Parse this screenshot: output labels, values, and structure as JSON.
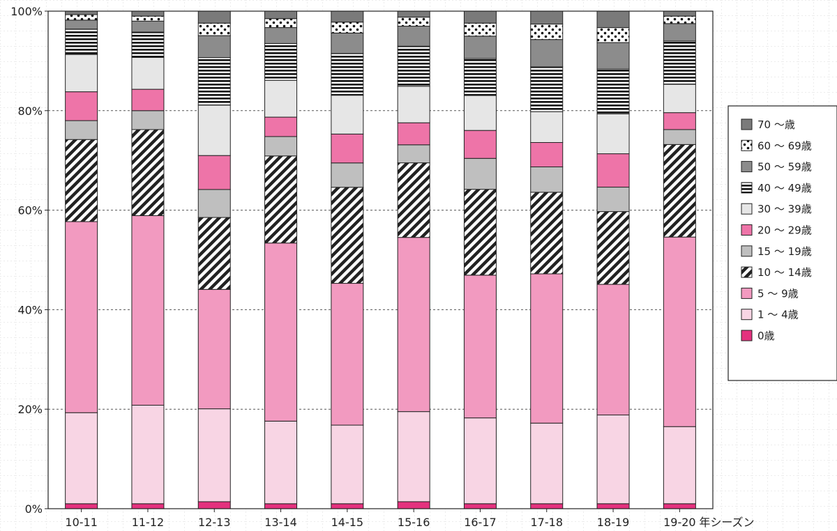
{
  "chart_data": {
    "type": "bar",
    "stacked": true,
    "normalized": true,
    "categories": [
      "10-11",
      "11-12",
      "12-13",
      "13-14",
      "14-15",
      "15-16",
      "16-17",
      "17-18",
      "18-19",
      "19-20"
    ],
    "x_unit_label": "年シーズン",
    "ylim": [
      0,
      100
    ],
    "y_ticks": [
      "0%",
      "20%",
      "40%",
      "60%",
      "80%",
      "100%"
    ],
    "grid": true,
    "legend_position": "right",
    "series": [
      {
        "name": "0歳",
        "color": "#e4317e",
        "pattern": "solid",
        "values": [
          1.0,
          1.0,
          1.4,
          1.0,
          1.0,
          1.4,
          1.0,
          1.0,
          1.0,
          1.0
        ]
      },
      {
        "name": "1 〜 4歳",
        "color": "#f8d5e4",
        "pattern": "solid",
        "values": [
          18.3,
          19.8,
          18.6,
          16.6,
          15.8,
          18.0,
          17.2,
          16.2,
          17.8,
          15.5
        ]
      },
      {
        "name": "5 〜 9歳",
        "color": "#f29ac0",
        "pattern": "solid",
        "values": [
          38.4,
          38.1,
          23.9,
          35.8,
          28.5,
          34.8,
          28.6,
          30.0,
          26.2,
          38.1
        ]
      },
      {
        "name": "10 〜 14歳",
        "color": "#222222",
        "pattern": "diagonal",
        "values": [
          16.5,
          17.3,
          14.4,
          17.5,
          19.3,
          14.9,
          17.2,
          16.4,
          14.6,
          18.6
        ]
      },
      {
        "name": "15 〜 19歳",
        "color": "#bfbfbf",
        "pattern": "solid",
        "values": [
          3.8,
          3.8,
          5.6,
          3.9,
          4.9,
          3.6,
          6.2,
          5.1,
          4.9,
          3.0
        ]
      },
      {
        "name": "20 〜 29歳",
        "color": "#ee74a8",
        "pattern": "solid",
        "values": [
          5.8,
          4.3,
          6.8,
          3.9,
          5.8,
          4.4,
          5.6,
          4.9,
          6.7,
          3.4
        ]
      },
      {
        "name": "30 〜 39歳",
        "color": "#e6e6e6",
        "pattern": "solid",
        "values": [
          7.5,
          6.4,
          10.1,
          7.4,
          7.8,
          7.3,
          7.0,
          6.2,
          8.0,
          5.7
        ]
      },
      {
        "name": "40 〜 49歳",
        "color": "#111111",
        "pattern": "horizontal",
        "values": [
          5.1,
          5.1,
          9.5,
          7.4,
          8.4,
          8.0,
          7.4,
          9.0,
          9.0,
          8.7
        ]
      },
      {
        "name": "50 〜 59歳",
        "color": "#8c8c8c",
        "pattern": "solid",
        "values": [
          1.8,
          2.2,
          4.4,
          3.2,
          4.1,
          4.0,
          4.5,
          5.5,
          5.3,
          3.5
        ]
      },
      {
        "name": "60 〜 69歳",
        "color": "#111111",
        "pattern": "dots",
        "values": [
          1.1,
          1.0,
          2.5,
          1.8,
          2.2,
          1.8,
          2.6,
          3.1,
          3.0,
          1.5
        ]
      },
      {
        "name": "70 〜歳",
        "color": "#7a7a7a",
        "pattern": "solid",
        "values": [
          0.7,
          1.0,
          2.4,
          1.5,
          2.2,
          1.2,
          2.4,
          2.6,
          3.3,
          1.0
        ]
      }
    ]
  }
}
